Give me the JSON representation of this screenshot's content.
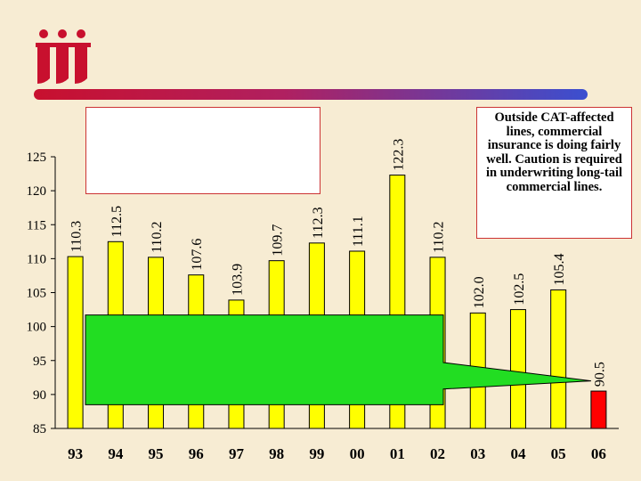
{
  "logo": {
    "icon": "iii-logo-icon",
    "color": "#c8102e"
  },
  "callout": {
    "text": "Outside CAT-affected lines, commercial insurance is doing fairly well. Caution is required in underwriting long-tail commercial lines."
  },
  "colors": {
    "bar_default": "#ffff00",
    "bar_highlight": "#ff0000",
    "bar_outline": "#000000",
    "overlay_fill": "#22dd22",
    "overlay_outline": "#000000"
  },
  "chart_data": {
    "type": "bar",
    "title": "",
    "xlabel": "",
    "ylabel": "",
    "categories": [
      "93",
      "94",
      "95",
      "96",
      "97",
      "98",
      "99",
      "00",
      "01",
      "02",
      "03",
      "04",
      "05",
      "06"
    ],
    "values": [
      110.3,
      112.5,
      110.2,
      107.6,
      103.9,
      109.7,
      112.3,
      111.1,
      122.3,
      110.2,
      102.0,
      102.5,
      105.4,
      90.5
    ],
    "value_labels": [
      "110.3",
      "112.5",
      "110.2",
      "107.6",
      "103.9",
      "109.7",
      "112.3",
      "111.1",
      "122.3",
      "110.2",
      "102.0",
      "102.5",
      "105.4",
      "90.5"
    ],
    "highlight_index": 13,
    "ylim": [
      85,
      125
    ],
    "yticks": [
      85,
      90,
      95,
      100,
      105,
      110,
      115,
      120,
      125
    ],
    "grid": false,
    "legend": "none"
  }
}
